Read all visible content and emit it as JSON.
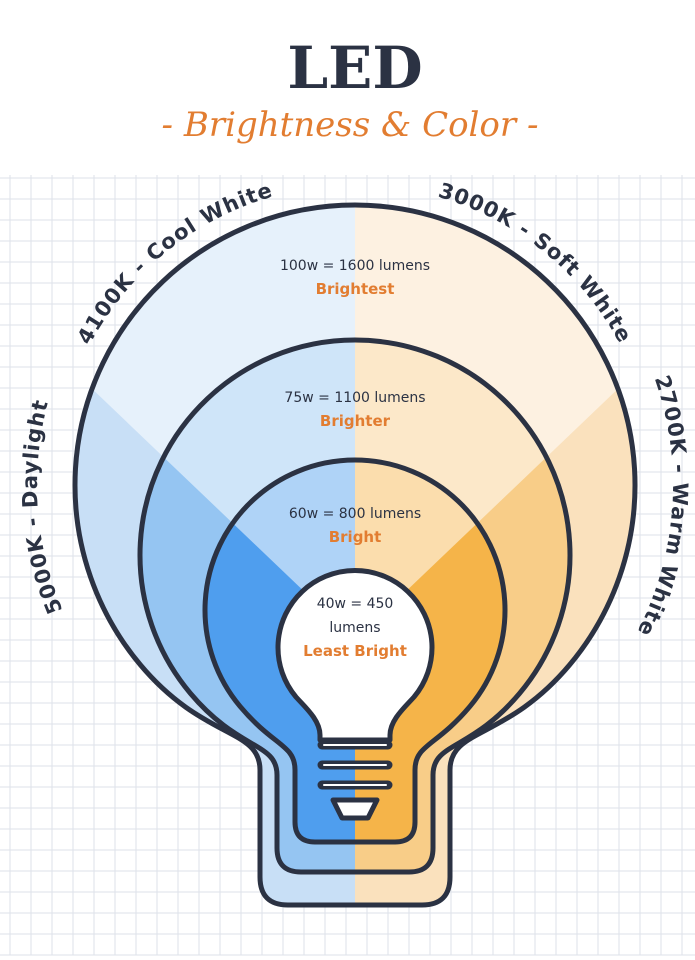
{
  "header": {
    "title": "LED",
    "subtitle": "- Brightness & Color -"
  },
  "color_temperatures": [
    {
      "label": "4100K - Cool White"
    },
    {
      "label": "3000K - Soft White"
    },
    {
      "label": "5000K - Daylight"
    },
    {
      "label": "2700K - Warm White"
    }
  ],
  "levels": [
    {
      "wattage": [
        "100w = 1600 lumens"
      ],
      "brightness": "Brightest"
    },
    {
      "wattage": [
        "75w = 1100 lumens"
      ],
      "brightness": "Brighter"
    },
    {
      "wattage": [
        "60w = 800 lumens"
      ],
      "brightness": "Bright"
    },
    {
      "wattage": [
        "40w = 450",
        "lumens"
      ],
      "brightness": "Least Bright"
    }
  ]
}
